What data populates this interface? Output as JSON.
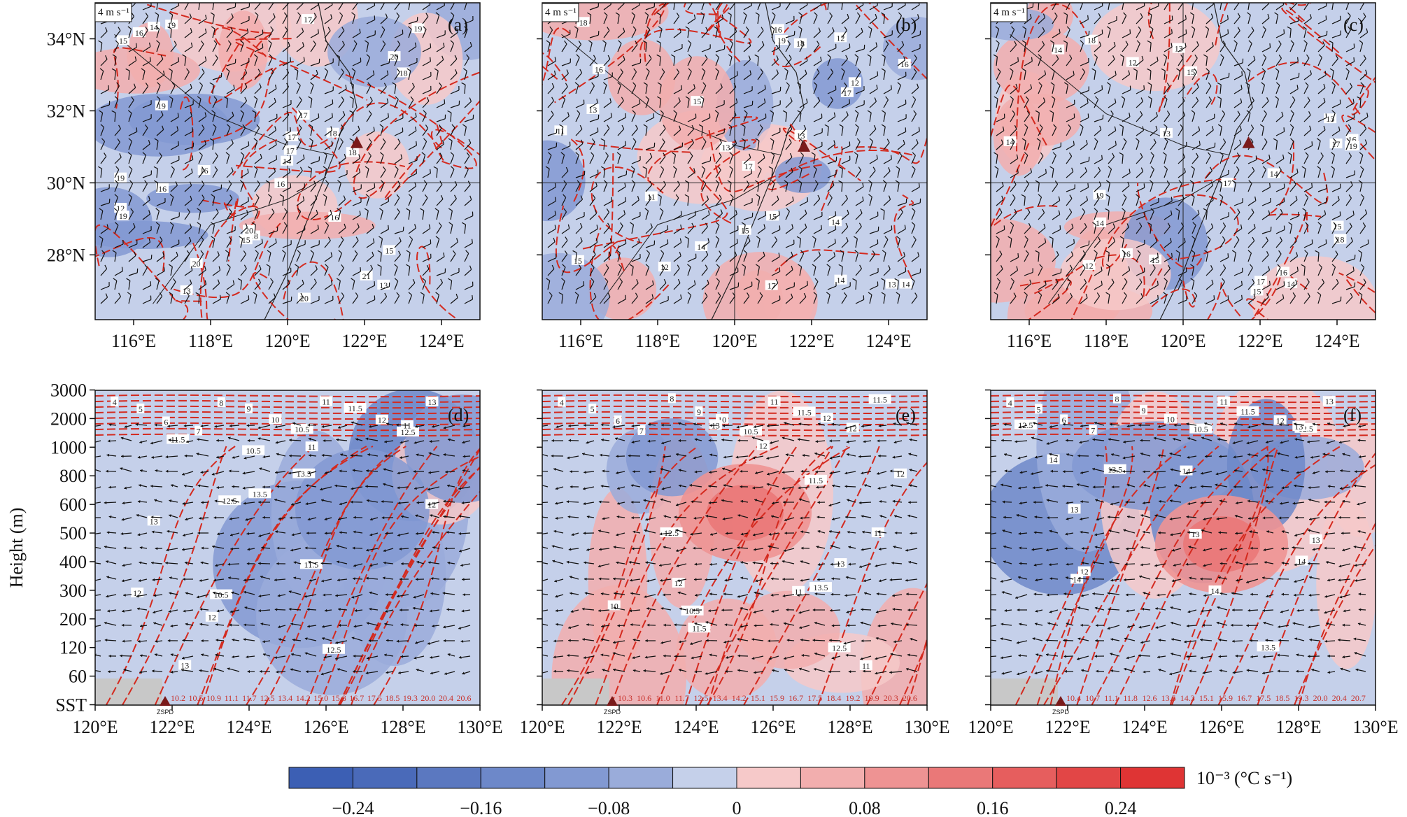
{
  "chart_data": [
    {
      "type": "heatmap",
      "panel": "(a)",
      "x_ticks": [
        "116°E",
        "118°E",
        "120°E",
        "122°E",
        "124°E"
      ],
      "y_ticks": [
        "28°N",
        "30°N",
        "32°N",
        "34°N"
      ],
      "xlim": [
        115,
        125
      ],
      "ylim": [
        26.2,
        35
      ],
      "vector_reference": "4 m s⁻¹",
      "marker": {
        "lon": 121.8,
        "lat": 31.1
      },
      "isotherm_labels": [
        "16",
        "14",
        "12",
        "17",
        "15",
        "16",
        "14",
        "13",
        "16",
        "17",
        "18",
        "15",
        "18",
        "17",
        "19",
        "20",
        "19",
        "16",
        "20",
        "21",
        "19",
        "17",
        "15",
        "13",
        "20",
        "18",
        "16",
        "19",
        "20",
        "18",
        "19"
      ]
    },
    {
      "type": "heatmap",
      "panel": "(b)",
      "x_ticks": [
        "116°E",
        "118°E",
        "120°E",
        "122°E",
        "124°E"
      ],
      "y_ticks": [],
      "xlim": [
        115,
        125
      ],
      "ylim": [
        26.2,
        35
      ],
      "vector_reference": "4 m s⁻¹",
      "marker": {
        "lon": 121.8,
        "lat": 31.0
      },
      "isotherm_labels": [
        "11",
        "12",
        "13",
        "14",
        "12",
        "15",
        "13",
        "11",
        "14",
        "12",
        "13",
        "15",
        "14",
        "16",
        "13",
        "15",
        "16",
        "17",
        "14",
        "16",
        "17",
        "18",
        "19",
        "15",
        "18",
        "17"
      ]
    },
    {
      "type": "heatmap",
      "panel": "(c)",
      "x_ticks": [
        "116°E",
        "118°E",
        "120°E",
        "122°E",
        "124°E"
      ],
      "y_ticks": [],
      "xlim": [
        115,
        125
      ],
      "ylim": [
        26.2,
        35
      ],
      "vector_reference": "4 m s⁻¹",
      "marker": {
        "lon": 121.7,
        "lat": 31.1
      },
      "isotherm_labels": [
        "14",
        "13",
        "12",
        "15",
        "14",
        "16",
        "13",
        "12",
        "15",
        "14",
        "16",
        "17",
        "13",
        "15",
        "14",
        "16",
        "18",
        "17",
        "19",
        "15",
        "16",
        "17",
        "18",
        "14",
        "19"
      ]
    },
    {
      "type": "heatmap",
      "panel": "(d)",
      "xlabel": "",
      "ylabel": "Height (m)",
      "x_ticks": [
        "120°E",
        "122°E",
        "124°E",
        "126°E",
        "128°E",
        "130°E"
      ],
      "y_ticks": [
        "SST",
        "60",
        "120",
        "200",
        "300",
        "400",
        "500",
        "600",
        "800",
        "1000",
        "2000",
        "3000"
      ],
      "xlim": [
        120,
        130
      ],
      "vector_reference": "",
      "sst_values": [
        "10.2",
        "10.5",
        "10.9",
        "11.1",
        "11.7",
        "12.5",
        "13.4",
        "14.2",
        "15.0",
        "15.8",
        "16.7",
        "17.5",
        "18.5",
        "19.3",
        "20.0",
        "20.4",
        "20.6"
      ],
      "isotherm_labels": [
        "4",
        "5",
        "6",
        "7",
        "8",
        "9",
        "10",
        "10.5",
        "11",
        "11.5",
        "12",
        "12.5",
        "13",
        "10.5",
        "11",
        "11.5",
        "12",
        "12.5",
        "13",
        "13.5",
        "12",
        "11.5",
        "11",
        "10.5",
        "12",
        "13",
        "12.5",
        "13.5"
      ]
    },
    {
      "type": "heatmap",
      "panel": "(e)",
      "x_ticks": [
        "120°E",
        "122°E",
        "124°E",
        "126°E",
        "128°E",
        "130°E"
      ],
      "y_ticks": [],
      "xlim": [
        120,
        130
      ],
      "vector_reference": "",
      "sst_values": [
        "10.3",
        "10.6",
        "11.0",
        "11.7",
        "12.5",
        "13.4",
        "14.2",
        "15.1",
        "15.9",
        "16.7",
        "17.5",
        "18.4",
        "19.2",
        "19.9",
        "20.3",
        "20.6"
      ],
      "isotherm_labels": [
        "4",
        "5",
        "6",
        "7",
        "8",
        "9",
        "10",
        "10.5",
        "11",
        "11.5",
        "12",
        "12",
        "11.5",
        "11",
        "10.5",
        "10",
        "11",
        "11.5",
        "12",
        "12.5",
        "13",
        "13.5",
        "13",
        "12.5",
        "12",
        "11.5",
        "11",
        "12"
      ]
    },
    {
      "type": "heatmap",
      "panel": "(f)",
      "x_ticks": [
        "120°E",
        "122°E",
        "124°E",
        "126°E",
        "128°E",
        "130°E"
      ],
      "y_ticks": [],
      "xlim": [
        120,
        130
      ],
      "vector_reference": "",
      "sst_values": [
        "10.4",
        "10.7",
        "11.1",
        "11.8",
        "12.6",
        "13.5",
        "14.3",
        "15.1",
        "15.9",
        "16.7",
        "17.5",
        "18.5",
        "19.3",
        "20.0",
        "20.4",
        "20.7"
      ],
      "isotherm_labels": [
        "4",
        "5",
        "6",
        "7",
        "8",
        "9",
        "10",
        "10.5",
        "11",
        "11.5",
        "12",
        "12.5",
        "13",
        "14",
        "13",
        "13.5",
        "14",
        "14",
        "13",
        "12",
        "13",
        "13.5",
        "12.5",
        "14",
        "13",
        "14"
      ]
    }
  ],
  "colorbar": {
    "tick_labels": [
      "−0.24",
      "−0.16",
      "−0.08",
      "0",
      "0.08",
      "0.16",
      "0.24"
    ],
    "tick_values": [
      -0.24,
      -0.16,
      -0.08,
      0,
      0.08,
      0.16,
      0.24
    ],
    "unit_label": "10⁻³ (°C s⁻¹)",
    "bins": [
      -0.28,
      -0.24,
      -0.2,
      -0.16,
      -0.12,
      -0.08,
      -0.04,
      0,
      0.04,
      0.08,
      0.12,
      0.16,
      0.2,
      0.24,
      0.28
    ],
    "colors": [
      "#3c5fb4",
      "#4a6ab9",
      "#5b78c0",
      "#6d88c9",
      "#8299d2",
      "#9aacda",
      "#c5d0ea",
      "#f6c9c9",
      "#f2aeae",
      "#ee9393",
      "#ea7878",
      "#e65e5e",
      "#e24646",
      "#df3434"
    ]
  },
  "station": {
    "label": "ZSPD"
  },
  "colors": {
    "isotherm": "#d42a1f",
    "barb": "#111111",
    "land": "#c8c8c8",
    "marker": "#7a1a1a"
  }
}
